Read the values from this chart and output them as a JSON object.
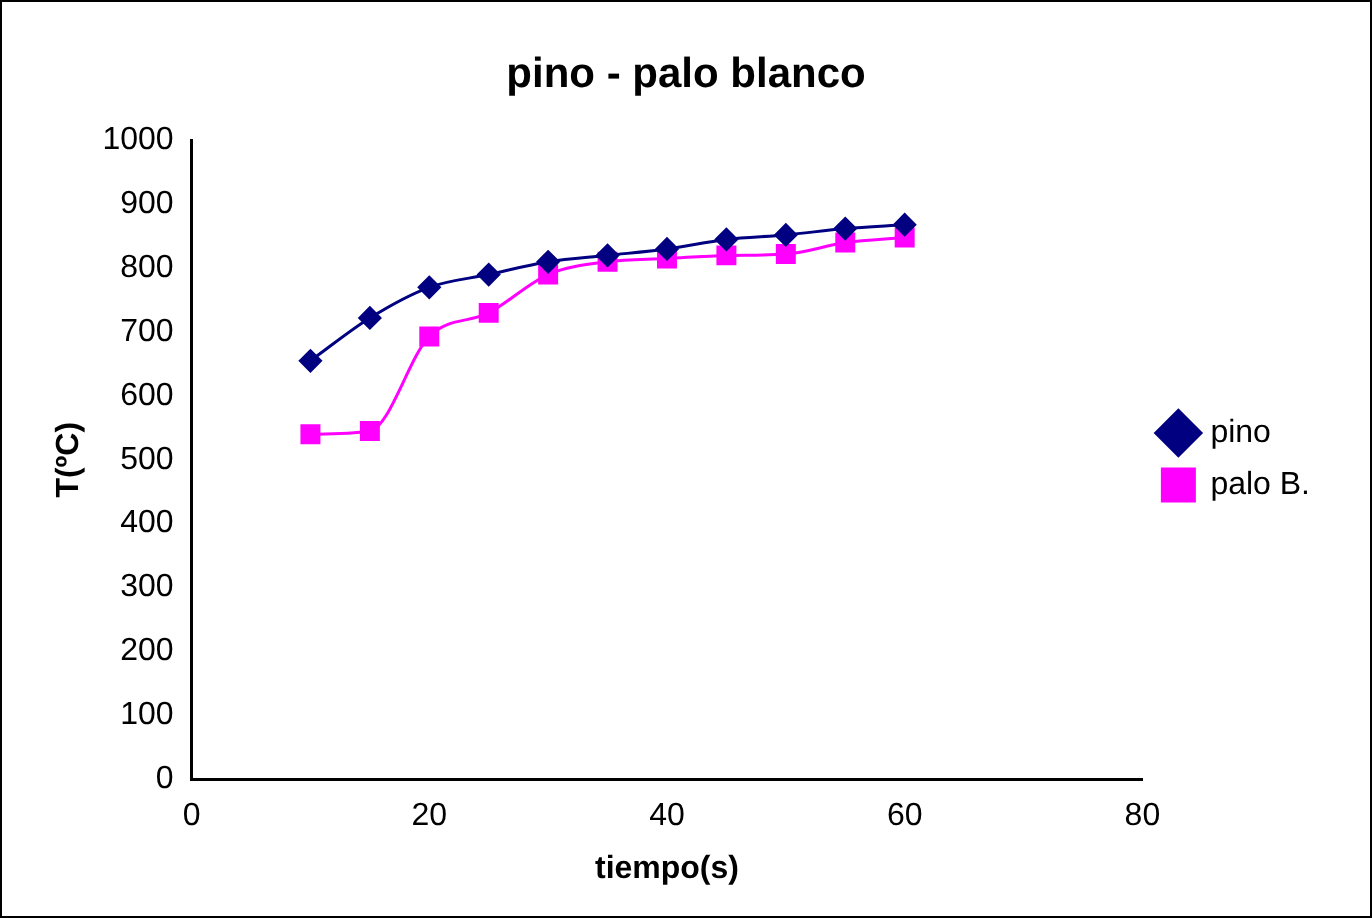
{
  "chart_data": {
    "type": "line",
    "title": "pino - palo blanco",
    "xlabel": "tiempo(s)",
    "ylabel": "T(ºC)",
    "x": [
      10,
      15,
      20,
      25,
      30,
      35,
      40,
      45,
      50,
      55,
      60
    ],
    "series": [
      {
        "name": "pino",
        "color": "#000080",
        "marker": "diamond",
        "values": [
          655,
          722,
          770,
          790,
          810,
          820,
          830,
          845,
          852,
          862,
          868
        ]
      },
      {
        "name": "palo B.",
        "color": "#ff00ff",
        "marker": "square",
        "values": [
          540,
          545,
          693,
          730,
          790,
          810,
          815,
          820,
          822,
          840,
          848
        ]
      }
    ],
    "xlim": [
      0,
      80
    ],
    "xticks": [
      0,
      20,
      40,
      60,
      80
    ],
    "ylim": [
      0,
      1000
    ],
    "yticks": [
      0,
      100,
      200,
      300,
      400,
      500,
      600,
      700,
      800,
      900,
      1000
    ],
    "grid": false,
    "legend": "right"
  }
}
